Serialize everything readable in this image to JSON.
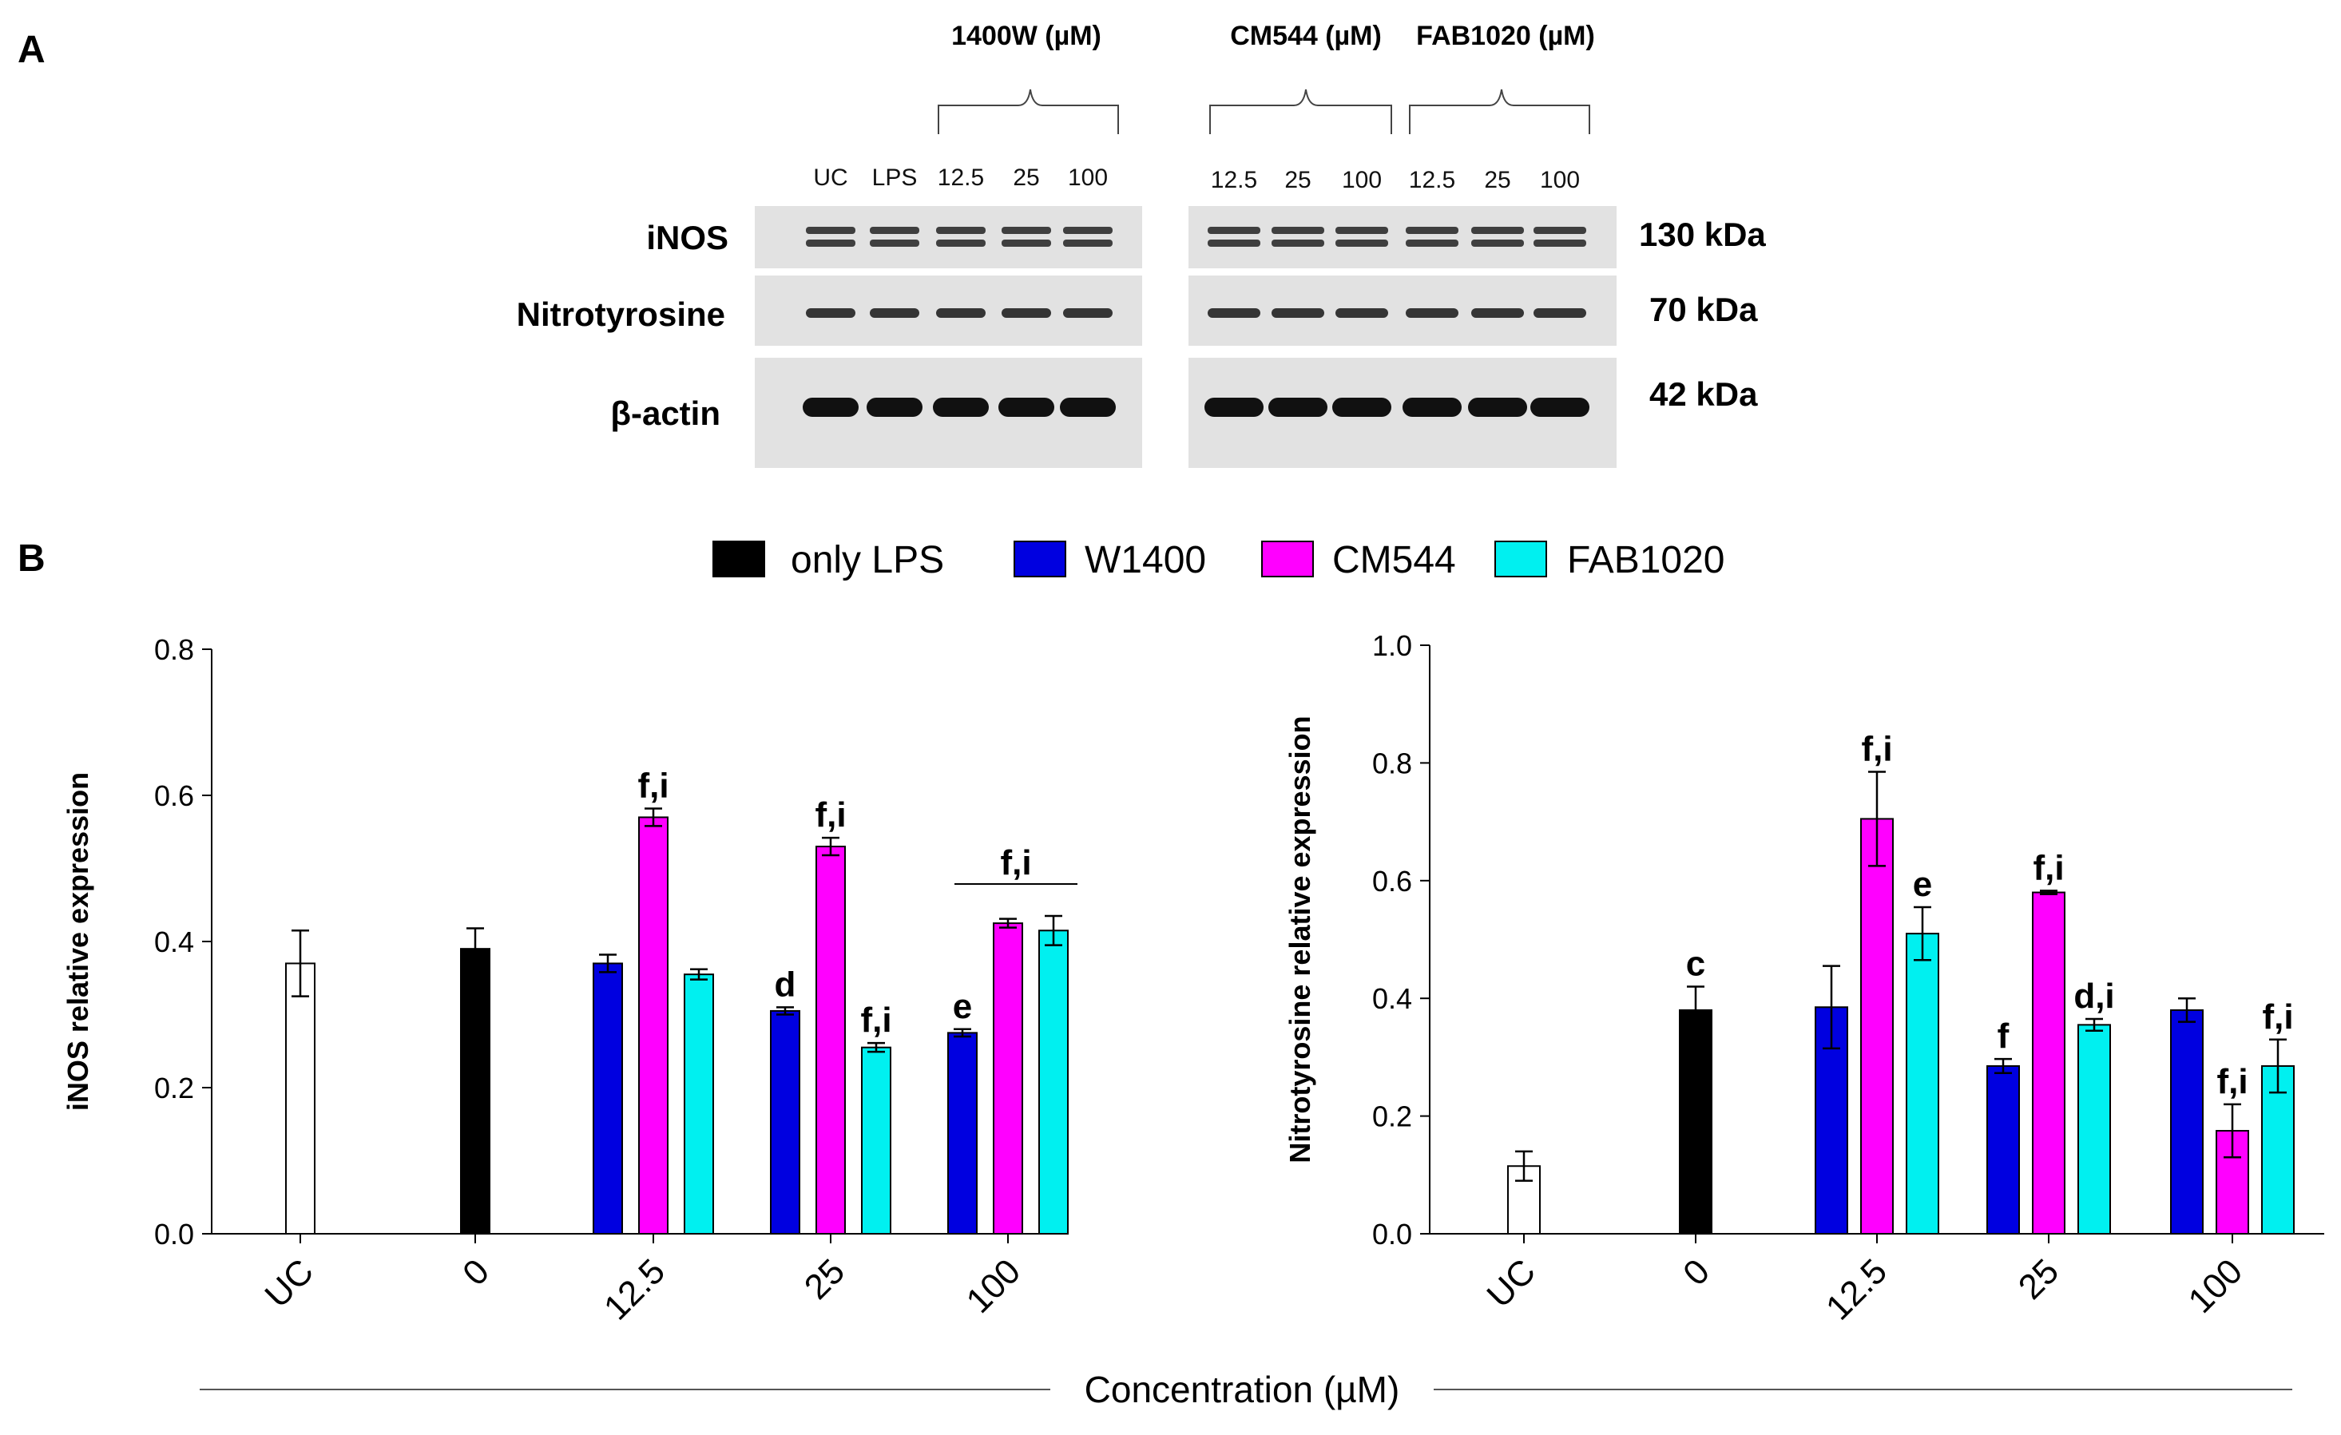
{
  "colors": {
    "uc": "#ffffff",
    "only_lps": "#000000",
    "w1400": "#0000e0",
    "cm544": "#ff00ff",
    "fab1020": "#00f0f0",
    "axis": "#000000",
    "blot_bg": "#e2e2e2",
    "band": "#222222"
  },
  "panel_a": {
    "label": "A",
    "groups": [
      {
        "title": "1400W (µM)"
      },
      {
        "title": "CM544 (µM)"
      },
      {
        "title": "FAB1020 (µM)"
      }
    ],
    "left_lanes": [
      "UC",
      "LPS",
      "12.5",
      "25",
      "100"
    ],
    "right_lanes": [
      "12.5",
      "25",
      "100",
      "12.5",
      "25",
      "100"
    ],
    "rows": [
      {
        "name": "iNOS",
        "kda": "130 kDa"
      },
      {
        "name": "Nitrotyrosine",
        "kda": "70 kDa"
      },
      {
        "name": "β-actin",
        "kda": "42 kDa"
      }
    ]
  },
  "panel_b": {
    "label": "B",
    "legend": [
      {
        "name": "only LPS",
        "color": "#000000"
      },
      {
        "name": "W1400",
        "color": "#0000e0"
      },
      {
        "name": "CM544",
        "color": "#ff00ff"
      },
      {
        "name": "FAB1020",
        "color": "#00f0f0"
      }
    ],
    "shared_xlabel": "Concentration (µM)"
  },
  "chart_data": [
    {
      "type": "bar",
      "ylabel": "iNOS relative expression",
      "xlabel": "Concentration (µM)",
      "ylim": [
        0,
        0.8
      ],
      "yticks": [
        "0.0",
        "0.2",
        "0.4",
        "0.6",
        "0.8"
      ],
      "categories": [
        "UC",
        "0",
        "12.5",
        "25",
        "100"
      ],
      "bars": [
        {
          "category": "UC",
          "series": "UC",
          "value": 0.37,
          "err": 0.045,
          "label": ""
        },
        {
          "category": "0",
          "series": "only LPS",
          "value": 0.39,
          "err": 0.028,
          "label": ""
        },
        {
          "category": "12.5",
          "series": "W1400",
          "value": 0.37,
          "err": 0.012,
          "label": ""
        },
        {
          "category": "12.5",
          "series": "CM544",
          "value": 0.57,
          "err": 0.012,
          "label": "f,i"
        },
        {
          "category": "12.5",
          "series": "FAB1020",
          "value": 0.355,
          "err": 0.007,
          "label": ""
        },
        {
          "category": "25",
          "series": "W1400",
          "value": 0.305,
          "err": 0.005,
          "label": "d"
        },
        {
          "category": "25",
          "series": "CM544",
          "value": 0.53,
          "err": 0.012,
          "label": "f,i"
        },
        {
          "category": "25",
          "series": "FAB1020",
          "value": 0.255,
          "err": 0.006,
          "label": "f,i"
        },
        {
          "category": "100",
          "series": "W1400",
          "value": 0.275,
          "err": 0.005,
          "label": "e"
        },
        {
          "category": "100",
          "series": "CM544",
          "value": 0.425,
          "err": 0.006,
          "label": ""
        },
        {
          "category": "100",
          "series": "FAB1020",
          "value": 0.415,
          "err": 0.02,
          "label": ""
        }
      ],
      "group_annotations": [
        {
          "category": "100",
          "label": "f,i"
        }
      ]
    },
    {
      "type": "bar",
      "ylabel": "Nitrotyrosine relative expression",
      "xlabel": "Concentration (µM)",
      "ylim": [
        0,
        1.0
      ],
      "yticks": [
        "0.0",
        "0.2",
        "0.4",
        "0.6",
        "0.8",
        "1.0"
      ],
      "categories": [
        "UC",
        "0",
        "12.5",
        "25",
        "100"
      ],
      "bars": [
        {
          "category": "UC",
          "series": "UC",
          "value": 0.115,
          "err": 0.025,
          "label": ""
        },
        {
          "category": "0",
          "series": "only LPS",
          "value": 0.38,
          "err": 0.04,
          "label": "c"
        },
        {
          "category": "12.5",
          "series": "W1400",
          "value": 0.385,
          "err": 0.07,
          "label": ""
        },
        {
          "category": "12.5",
          "series": "CM544",
          "value": 0.705,
          "err": 0.08,
          "label": "f,i"
        },
        {
          "category": "12.5",
          "series": "FAB1020",
          "value": 0.51,
          "err": 0.045,
          "label": "e"
        },
        {
          "category": "25",
          "series": "W1400",
          "value": 0.285,
          "err": 0.012,
          "label": "f"
        },
        {
          "category": "25",
          "series": "CM544",
          "value": 0.58,
          "err": 0.003,
          "label": "f,i"
        },
        {
          "category": "25",
          "series": "FAB1020",
          "value": 0.355,
          "err": 0.01,
          "label": "d,i"
        },
        {
          "category": "100",
          "series": "W1400",
          "value": 0.38,
          "err": 0.02,
          "label": ""
        },
        {
          "category": "100",
          "series": "CM544",
          "value": 0.175,
          "err": 0.045,
          "label": "f,i"
        },
        {
          "category": "100",
          "series": "FAB1020",
          "value": 0.285,
          "err": 0.045,
          "label": "f,i"
        }
      ],
      "group_annotations": []
    }
  ]
}
